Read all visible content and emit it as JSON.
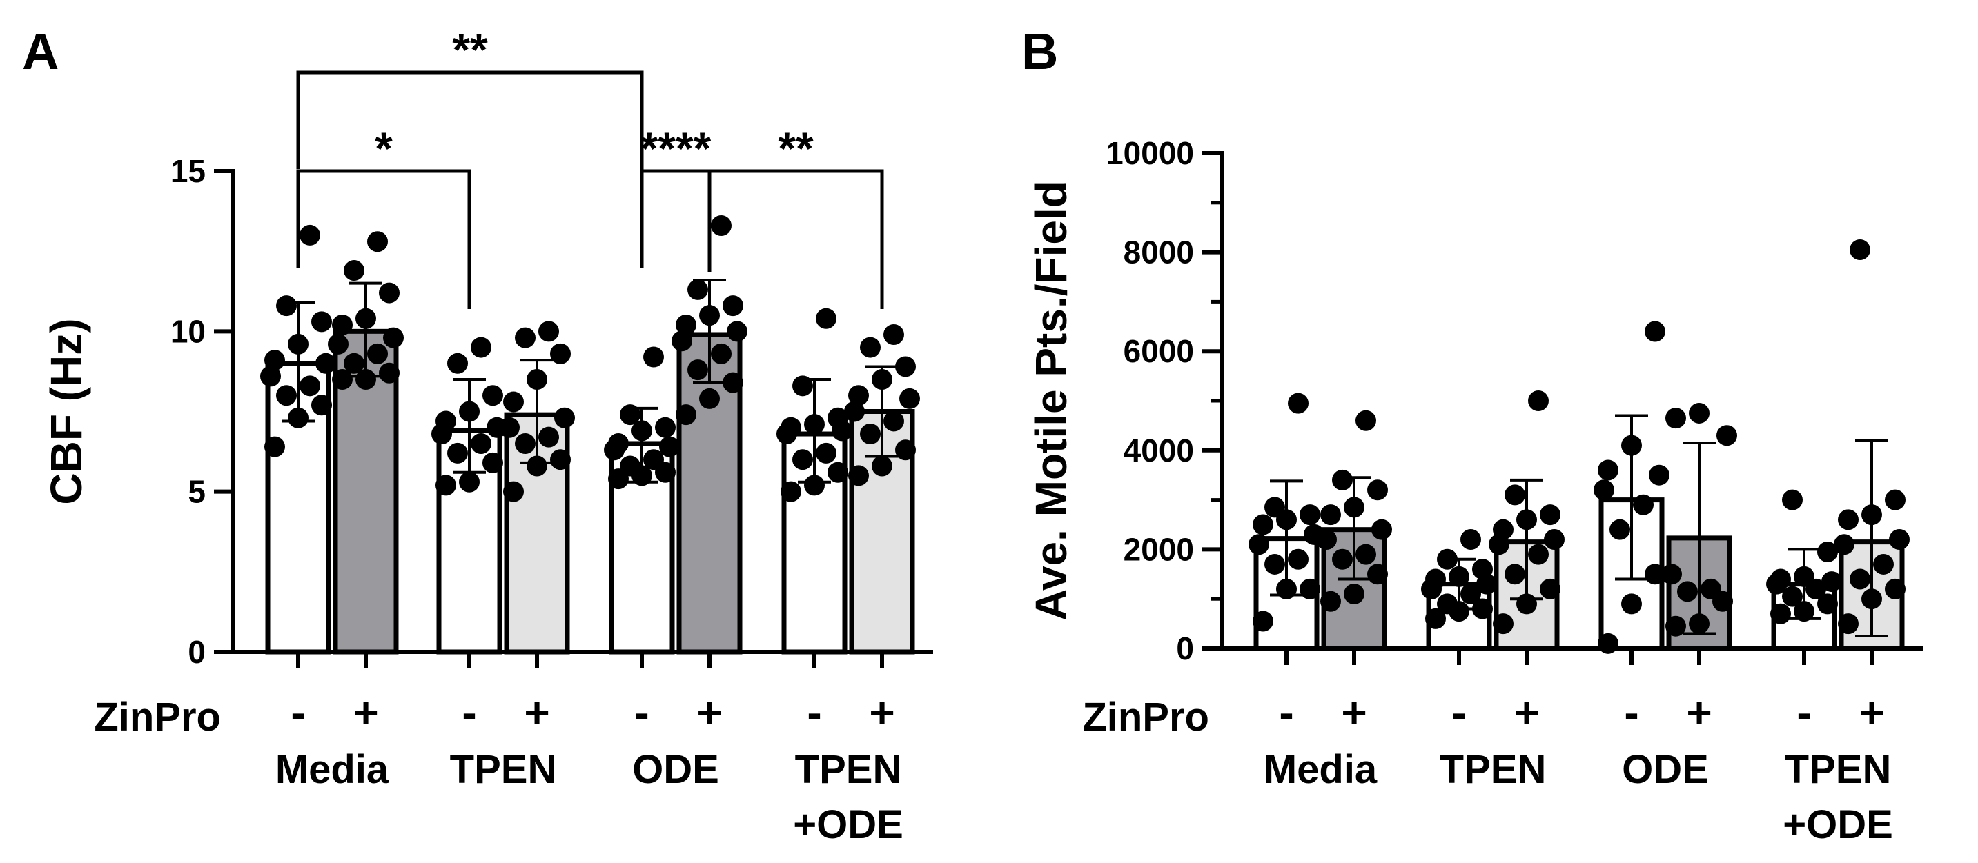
{
  "figure": {
    "bar_colors": {
      "-": "#ffffff",
      "+": "#9a9a9e",
      "+light": "#e3e3e3"
    },
    "edge_color": "#000000",
    "point_color": "#000000"
  },
  "chart_data": [
    {
      "panel_label": "A",
      "type": "bar",
      "ylabel": "CBF (Hz)",
      "ylim": [
        0,
        15
      ],
      "yticks": [
        0,
        5,
        10,
        15
      ],
      "ytick_labels": [
        "0",
        "5",
        "10",
        "15"
      ],
      "zinpro_label": "ZinPro",
      "groups": [
        {
          "label": [
            "Media"
          ]
        },
        {
          "label": [
            "TPEN"
          ]
        },
        {
          "label": [
            "ODE"
          ]
        },
        {
          "label": [
            "TPEN",
            "+ODE"
          ]
        }
      ],
      "bars": [
        {
          "group": 0,
          "zinpro": "-",
          "fill": "#ffffff",
          "mean": 9.0,
          "sd_upper": 10.9,
          "sd_lower": 7.2,
          "points": [
            13.0,
            10.8,
            10.3,
            9.6,
            9.1,
            9.0,
            8.6,
            8.3,
            8.0,
            7.7,
            7.3,
            6.4
          ]
        },
        {
          "group": 0,
          "zinpro": "+",
          "fill": "#9a9a9e",
          "mean": 10.0,
          "sd_upper": 11.5,
          "sd_lower": 8.6,
          "points": [
            12.8,
            11.9,
            11.2,
            10.4,
            10.2,
            9.8,
            9.6,
            9.3,
            9.0,
            8.7,
            8.5,
            8.5
          ]
        },
        {
          "group": 1,
          "zinpro": "-",
          "fill": "#ffffff",
          "mean": 6.9,
          "sd_upper": 8.5,
          "sd_lower": 5.6,
          "points": [
            9.5,
            9.0,
            8.0,
            7.5,
            7.2,
            7.0,
            6.8,
            6.5,
            6.2,
            5.9,
            5.3,
            5.2
          ]
        },
        {
          "group": 1,
          "zinpro": "+",
          "fill": "#e3e3e3",
          "mean": 7.4,
          "sd_upper": 9.1,
          "sd_lower": 5.9,
          "points": [
            10.0,
            9.8,
            9.3,
            8.5,
            7.8,
            7.3,
            7.0,
            6.7,
            6.5,
            6.0,
            5.8,
            5.0
          ]
        },
        {
          "group": 2,
          "zinpro": "-",
          "fill": "#ffffff",
          "mean": 6.5,
          "sd_upper": 7.6,
          "sd_lower": 5.3,
          "points": [
            9.2,
            7.4,
            7.0,
            6.9,
            6.5,
            6.4,
            6.3,
            6.0,
            5.8,
            5.6,
            5.5,
            5.4
          ]
        },
        {
          "group": 2,
          "zinpro": "+",
          "fill": "#9a9a9e",
          "mean": 9.9,
          "sd_upper": 11.6,
          "sd_lower": 8.4,
          "points": [
            13.3,
            11.3,
            10.8,
            10.5,
            10.2,
            10.0,
            9.7,
            9.3,
            8.8,
            8.4,
            7.9,
            7.4
          ]
        },
        {
          "group": 3,
          "zinpro": "-",
          "fill": "#ffffff",
          "mean": 6.8,
          "sd_upper": 8.5,
          "sd_lower": 5.3,
          "points": [
            10.4,
            8.3,
            7.3,
            7.1,
            7.0,
            6.9,
            6.8,
            6.2,
            6.0,
            5.6,
            5.2,
            5.0
          ]
        },
        {
          "group": 3,
          "zinpro": "+",
          "fill": "#e3e3e3",
          "mean": 7.5,
          "sd_upper": 8.9,
          "sd_lower": 6.1,
          "points": [
            9.9,
            9.5,
            8.9,
            8.5,
            8.0,
            7.9,
            7.5,
            7.2,
            6.8,
            6.3,
            5.8,
            5.5
          ]
        }
      ],
      "significance": [
        {
          "from_bar": 0,
          "to_bar": 4,
          "label": "**",
          "level": 2
        },
        {
          "from_bar": 0,
          "to_bar": 2,
          "label": "*",
          "level": 1
        },
        {
          "from_bar": 4,
          "to_bar": 5,
          "label": "****",
          "level": 1
        },
        {
          "from_bar": 5,
          "to_bar": 7,
          "label": "**",
          "level": 1
        }
      ]
    },
    {
      "panel_label": "B",
      "type": "bar",
      "ylabel": "Ave. Motile Pts./Field",
      "ylim": [
        0,
        10000
      ],
      "yticks": [
        0,
        2000,
        4000,
        6000,
        8000,
        10000
      ],
      "ytick_labels": [
        "0",
        "2000",
        "4000",
        "6000",
        "8000",
        "10000"
      ],
      "zinpro_label": "ZinPro",
      "groups": [
        {
          "label": [
            "Media"
          ]
        },
        {
          "label": [
            "TPEN"
          ]
        },
        {
          "label": [
            "ODE"
          ]
        },
        {
          "label": [
            "TPEN",
            "+ODE"
          ]
        }
      ],
      "bars": [
        {
          "group": 0,
          "zinpro": "-",
          "fill": "#ffffff",
          "mean": 2220,
          "sd_upper": 3380,
          "sd_lower": 1080,
          "points": [
            4950,
            2850,
            2700,
            2600,
            2500,
            2300,
            2100,
            1800,
            1700,
            1200,
            1200,
            550
          ]
        },
        {
          "group": 0,
          "zinpro": "+",
          "fill": "#9a9a9e",
          "mean": 2400,
          "sd_upper": 3450,
          "sd_lower": 1400,
          "points": [
            4600,
            3400,
            3200,
            2850,
            2700,
            2400,
            2200,
            1900,
            1800,
            1500,
            1100,
            950
          ]
        },
        {
          "group": 1,
          "zinpro": "-",
          "fill": "#ffffff",
          "mean": 1300,
          "sd_upper": 1800,
          "sd_lower": 800,
          "points": [
            2200,
            1800,
            1600,
            1450,
            1400,
            1300,
            1200,
            1100,
            900,
            800,
            750,
            600
          ]
        },
        {
          "group": 1,
          "zinpro": "+",
          "fill": "#e3e3e3",
          "mean": 2150,
          "sd_upper": 3400,
          "sd_lower": 1000,
          "points": [
            5000,
            3100,
            2700,
            2600,
            2400,
            2200,
            2100,
            1900,
            1500,
            1200,
            900,
            500
          ]
        },
        {
          "group": 2,
          "zinpro": "-",
          "fill": "#ffffff",
          "mean": 3000,
          "sd_upper": 4700,
          "sd_lower": 1400,
          "points": [
            6400,
            4100,
            3600,
            3500,
            3200,
            2900,
            2400,
            1500,
            900,
            100
          ]
        },
        {
          "group": 2,
          "zinpro": "+",
          "fill": "#9a9a9e",
          "mean": 2230,
          "sd_upper": 4150,
          "sd_lower": 300,
          "points": [
            4750,
            4650,
            4300,
            1500,
            1200,
            1150,
            950,
            500,
            450
          ]
        },
        {
          "group": 3,
          "zinpro": "-",
          "fill": "#ffffff",
          "mean": 1300,
          "sd_upper": 2000,
          "sd_lower": 600,
          "points": [
            3000,
            1950,
            1450,
            1400,
            1350,
            1300,
            1200,
            1050,
            900,
            750,
            700
          ]
        },
        {
          "group": 3,
          "zinpro": "+",
          "fill": "#e3e3e3",
          "mean": 2150,
          "sd_upper": 4200,
          "sd_lower": 250,
          "points": [
            8050,
            3000,
            2700,
            2600,
            2200,
            2100,
            1700,
            1400,
            1200,
            1000,
            500
          ]
        }
      ],
      "significance": []
    }
  ]
}
